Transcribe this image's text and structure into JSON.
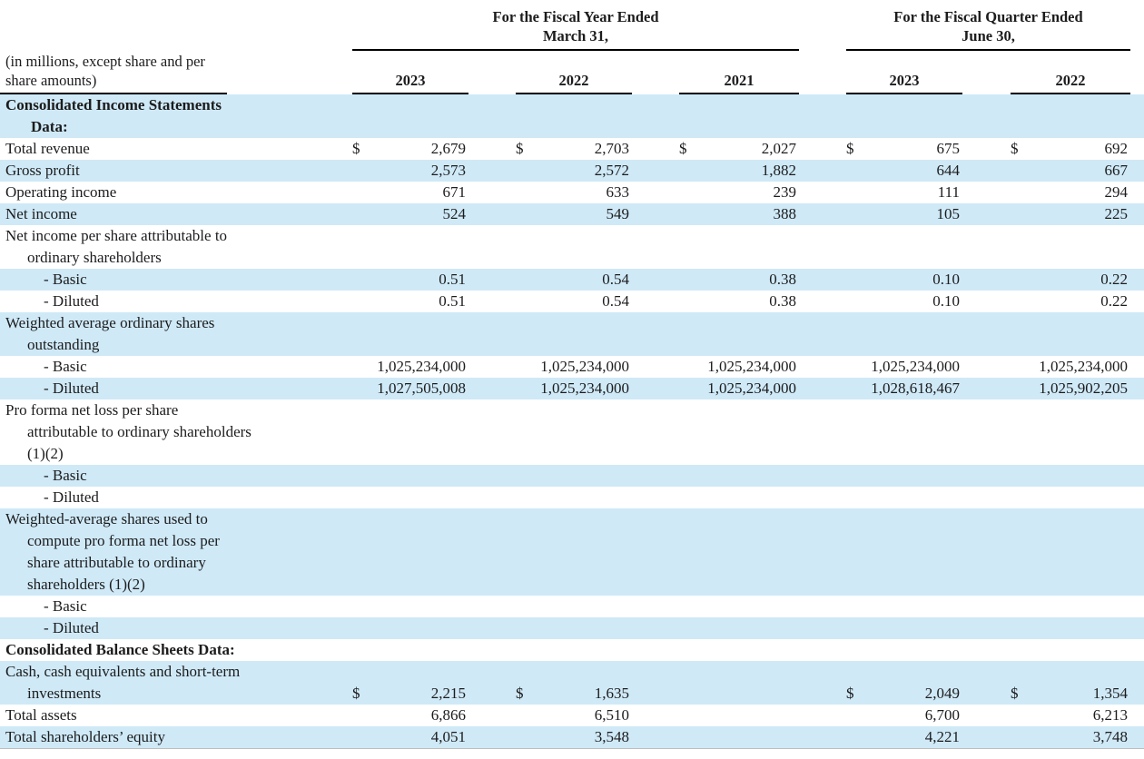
{
  "note_lines": [
    "(in millions, except share and per",
    "share amounts)"
  ],
  "header": {
    "groups": [
      {
        "title_line1": "For the Fiscal Year Ended",
        "title_line2": "March 31,",
        "years": [
          "2023",
          "2022",
          "2021"
        ]
      },
      {
        "title_line1": "For the Fiscal Quarter Ended",
        "title_line2": "June 30,",
        "years": [
          "2023",
          "2022"
        ]
      }
    ]
  },
  "colors": {
    "row_highlight": "#cfe9f7",
    "text": "#1c1c1c",
    "rule": "#000000"
  },
  "table": {
    "rows": [
      {
        "label_lines": [
          "Consolidated Income Statements",
          "Data:"
        ],
        "style": "section",
        "shaded": true,
        "cells": [
          null,
          null,
          null,
          null,
          null
        ]
      },
      {
        "label_lines": [
          "Total revenue"
        ],
        "style": "item",
        "shaded": false,
        "cells": [
          {
            "currency": "$",
            "value": "2,679"
          },
          {
            "currency": "$",
            "value": "2,703"
          },
          {
            "currency": "$",
            "value": "2,027"
          },
          {
            "currency": "$",
            "value": "675"
          },
          {
            "currency": "$",
            "value": "692"
          }
        ]
      },
      {
        "label_lines": [
          "Gross profit"
        ],
        "style": "item",
        "shaded": true,
        "cells": [
          {
            "currency": "",
            "value": "2,573"
          },
          {
            "currency": "",
            "value": "2,572"
          },
          {
            "currency": "",
            "value": "1,882"
          },
          {
            "currency": "",
            "value": "644"
          },
          {
            "currency": "",
            "value": "667"
          }
        ]
      },
      {
        "label_lines": [
          "Operating income"
        ],
        "style": "item",
        "shaded": false,
        "cells": [
          {
            "currency": "",
            "value": "671"
          },
          {
            "currency": "",
            "value": "633"
          },
          {
            "currency": "",
            "value": "239"
          },
          {
            "currency": "",
            "value": "111"
          },
          {
            "currency": "",
            "value": "294"
          }
        ]
      },
      {
        "label_lines": [
          "Net income"
        ],
        "style": "item",
        "shaded": true,
        "cells": [
          {
            "currency": "",
            "value": "524"
          },
          {
            "currency": "",
            "value": "549"
          },
          {
            "currency": "",
            "value": "388"
          },
          {
            "currency": "",
            "value": "105"
          },
          {
            "currency": "",
            "value": "225"
          }
        ]
      },
      {
        "label_lines": [
          "Net income per share attributable to",
          "ordinary shareholders"
        ],
        "style": "item",
        "shaded": false,
        "cells": [
          null,
          null,
          null,
          null,
          null
        ]
      },
      {
        "label_lines": [
          "- Basic"
        ],
        "style": "subitem",
        "shaded": true,
        "cells": [
          {
            "currency": "",
            "value": "0.51"
          },
          {
            "currency": "",
            "value": "0.54"
          },
          {
            "currency": "",
            "value": "0.38"
          },
          {
            "currency": "",
            "value": "0.10"
          },
          {
            "currency": "",
            "value": "0.22"
          }
        ]
      },
      {
        "label_lines": [
          "- Diluted"
        ],
        "style": "subitem",
        "shaded": false,
        "cells": [
          {
            "currency": "",
            "value": "0.51"
          },
          {
            "currency": "",
            "value": "0.54"
          },
          {
            "currency": "",
            "value": "0.38"
          },
          {
            "currency": "",
            "value": "0.10"
          },
          {
            "currency": "",
            "value": "0.22"
          }
        ]
      },
      {
        "label_lines": [
          "Weighted average ordinary shares",
          "outstanding"
        ],
        "style": "item",
        "shaded": true,
        "cells": [
          null,
          null,
          null,
          null,
          null
        ]
      },
      {
        "label_lines": [
          "- Basic"
        ],
        "style": "subitem",
        "shaded": false,
        "cells": [
          {
            "currency": "",
            "value": "1,025,234,000"
          },
          {
            "currency": "",
            "value": "1,025,234,000"
          },
          {
            "currency": "",
            "value": "1,025,234,000"
          },
          {
            "currency": "",
            "value": "1,025,234,000"
          },
          {
            "currency": "",
            "value": "1,025,234,000"
          }
        ]
      },
      {
        "label_lines": [
          "- Diluted"
        ],
        "style": "subitem",
        "shaded": true,
        "cells": [
          {
            "currency": "",
            "value": "1,027,505,008"
          },
          {
            "currency": "",
            "value": "1,025,234,000"
          },
          {
            "currency": "",
            "value": "1,025,234,000"
          },
          {
            "currency": "",
            "value": "1,028,618,467"
          },
          {
            "currency": "",
            "value": "1,025,902,205"
          }
        ]
      },
      {
        "label_lines": [
          "Pro forma net loss per share",
          "attributable to ordinary shareholders",
          "(1)(2)"
        ],
        "style": "item",
        "shaded": false,
        "cells": [
          null,
          null,
          null,
          null,
          null
        ]
      },
      {
        "label_lines": [
          "- Basic"
        ],
        "style": "subitem",
        "shaded": true,
        "cells": [
          null,
          null,
          null,
          null,
          null
        ]
      },
      {
        "label_lines": [
          "- Diluted"
        ],
        "style": "subitem",
        "shaded": false,
        "cells": [
          null,
          null,
          null,
          null,
          null
        ]
      },
      {
        "label_lines": [
          "Weighted-average shares used to",
          "compute pro forma net loss per",
          "share attributable to ordinary",
          "shareholders (1)(2)"
        ],
        "style": "item",
        "shaded": true,
        "cells": [
          null,
          null,
          null,
          null,
          null
        ]
      },
      {
        "label_lines": [
          "- Basic"
        ],
        "style": "subitem",
        "shaded": false,
        "cells": [
          null,
          null,
          null,
          null,
          null
        ]
      },
      {
        "label_lines": [
          "- Diluted"
        ],
        "style": "subitem",
        "shaded": true,
        "cells": [
          null,
          null,
          null,
          null,
          null
        ]
      },
      {
        "label_lines": [
          "Consolidated Balance Sheets Data:"
        ],
        "style": "section",
        "shaded": false,
        "cells": [
          null,
          null,
          null,
          null,
          null
        ]
      },
      {
        "label_lines": [
          "Cash, cash equivalents and short-term",
          "investments"
        ],
        "style": "item",
        "shaded": true,
        "cells": [
          {
            "currency": "$",
            "value": "2,215"
          },
          {
            "currency": "$",
            "value": "1,635"
          },
          null,
          {
            "currency": "$",
            "value": "2,049"
          },
          {
            "currency": "$",
            "value": "1,354"
          }
        ]
      },
      {
        "label_lines": [
          "Total assets"
        ],
        "style": "item",
        "shaded": false,
        "cells": [
          {
            "currency": "",
            "value": "6,866"
          },
          {
            "currency": "",
            "value": "6,510"
          },
          null,
          {
            "currency": "",
            "value": "6,700"
          },
          {
            "currency": "",
            "value": "6,213"
          }
        ]
      },
      {
        "label_lines": [
          "Total shareholders’ equity"
        ],
        "style": "item",
        "shaded": true,
        "cells": [
          {
            "currency": "",
            "value": "4,051"
          },
          {
            "currency": "",
            "value": "3,548"
          },
          null,
          {
            "currency": "",
            "value": "4,221"
          },
          {
            "currency": "",
            "value": "3,748"
          }
        ]
      }
    ]
  }
}
